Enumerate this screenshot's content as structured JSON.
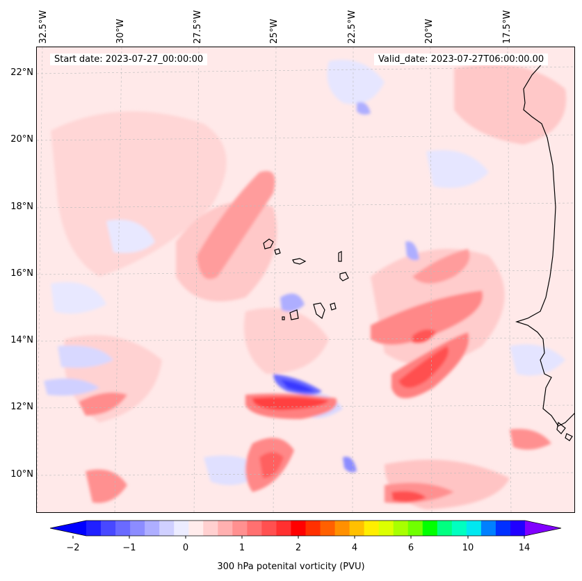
{
  "map": {
    "start_date_label": "Start date: 2023-07-27_00:00:00",
    "valid_date_label": "Valid_date: 2023-07-27T06:00:00.00",
    "longitude_labels": [
      "32.5°W",
      "30°W",
      "27.5°W",
      "25°W",
      "22.5°W",
      "20°W",
      "17.5°W"
    ],
    "latitude_labels": [
      "22°N",
      "20°N",
      "18°N",
      "16°N",
      "14°N",
      "12°N",
      "10°N"
    ],
    "colors": {
      "background": "#ffe9e9",
      "land_outline": "#000000",
      "gridline": "#bbbbbb"
    }
  },
  "colorbar": {
    "label": "300 hPa potenital vorticity (PVU)",
    "tick_labels": [
      "−2",
      "−1",
      "0",
      "1",
      "2",
      "4",
      "6",
      "10",
      "14"
    ],
    "colors": [
      "#0000ff",
      "#2020ff",
      "#4848ff",
      "#6a6aff",
      "#8c8cff",
      "#aeaeff",
      "#d0d0ff",
      "#ececff",
      "#ffecec",
      "#ffd0d0",
      "#ffb0b0",
      "#ff9090",
      "#ff7070",
      "#ff5050",
      "#ff3030",
      "#ff0000",
      "#ff3000",
      "#ff6000",
      "#ff9000",
      "#ffc000",
      "#ffee00",
      "#dcff00",
      "#a8ff00",
      "#70ff00",
      "#00ff00",
      "#00ff80",
      "#00ffc0",
      "#00e8f0",
      "#0080ff",
      "#0030ff",
      "#2000ff",
      "#8000ff"
    ]
  }
}
